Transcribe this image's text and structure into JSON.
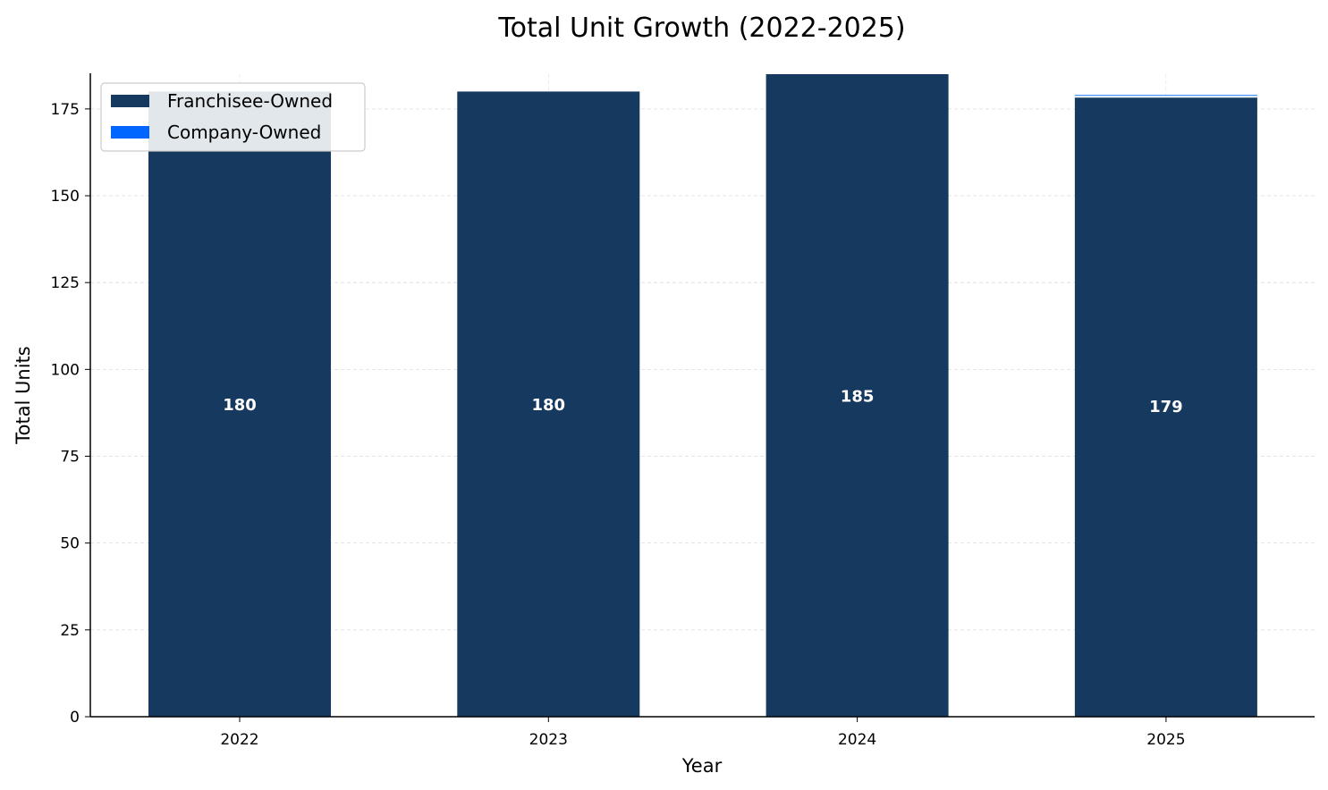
{
  "chart_data": {
    "type": "bar",
    "stacked": true,
    "title": "Total Unit Growth (2022-2025)",
    "xlabel": "Year",
    "ylabel": "Total Units",
    "categories": [
      "2022",
      "2023",
      "2024",
      "2025"
    ],
    "series": [
      {
        "name": "Franchisee-Owned",
        "color": "#16395f",
        "values": [
          180,
          180,
          185,
          178.5
        ]
      },
      {
        "name": "Company-Owned",
        "color": "#0066ff",
        "values": [
          0,
          0,
          0,
          0.5
        ]
      }
    ],
    "totals": [
      180,
      180,
      185,
      179
    ],
    "total_labels": [
      "180",
      "180",
      "185",
      "179"
    ],
    "ylim": [
      0,
      185
    ],
    "yticks": [
      0,
      25,
      50,
      75,
      100,
      125,
      150,
      175
    ],
    "ytick_labels": [
      "0",
      "25",
      "50",
      "75",
      "100",
      "125",
      "150",
      "175"
    ],
    "grid": true,
    "legend_position": "upper-left"
  }
}
